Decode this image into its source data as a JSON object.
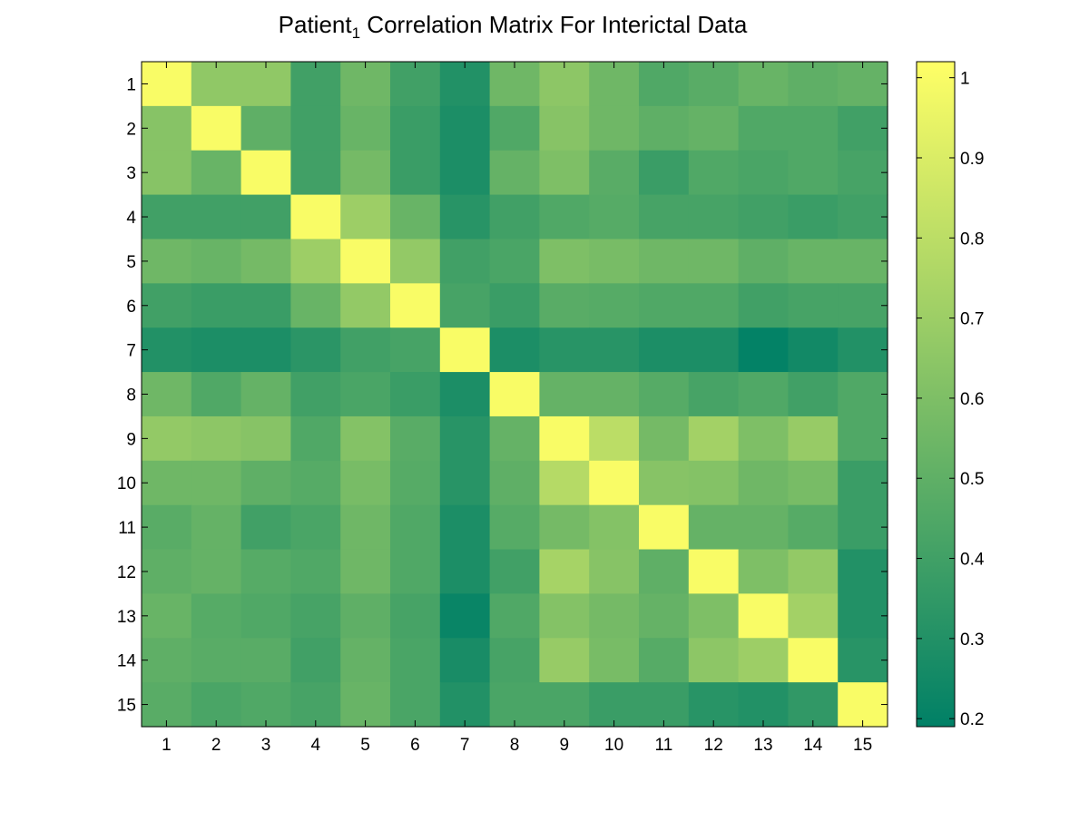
{
  "chart_data": {
    "type": "heatmap",
    "title": {
      "main": "Patient",
      "subscript": "1",
      "rest": " Correlation Matrix For Interictal Data"
    },
    "xlabel": "",
    "ylabel": "",
    "x_categories": [
      "1",
      "2",
      "3",
      "4",
      "5",
      "6",
      "7",
      "8",
      "9",
      "10",
      "11",
      "12",
      "13",
      "14",
      "15"
    ],
    "y_categories": [
      "1",
      "2",
      "3",
      "4",
      "5",
      "6",
      "7",
      "8",
      "9",
      "10",
      "11",
      "12",
      "13",
      "14",
      "15"
    ],
    "colorbar": {
      "range": [
        0.19,
        1.02
      ],
      "ticks": [
        0.2,
        0.3,
        0.4,
        0.5,
        0.6,
        0.7,
        0.8,
        0.9,
        1
      ],
      "tick_labels": [
        "0.2",
        "0.3",
        "0.4",
        "0.5",
        "0.6",
        "0.7",
        "0.8",
        "0.9",
        "1"
      ],
      "colormap": "summer",
      "low_color": "#008066",
      "high_color": "#ffff66"
    },
    "values": [
      [
        1.0,
        0.66,
        0.66,
        0.4,
        0.55,
        0.4,
        0.3,
        0.55,
        0.65,
        0.55,
        0.45,
        0.48,
        0.53,
        0.5,
        0.52
      ],
      [
        0.63,
        1.0,
        0.5,
        0.4,
        0.53,
        0.38,
        0.28,
        0.45,
        0.63,
        0.55,
        0.5,
        0.52,
        0.45,
        0.45,
        0.4
      ],
      [
        0.63,
        0.53,
        1.0,
        0.4,
        0.57,
        0.38,
        0.28,
        0.52,
        0.6,
        0.48,
        0.38,
        0.45,
        0.43,
        0.45,
        0.42
      ],
      [
        0.4,
        0.4,
        0.4,
        1.0,
        0.7,
        0.53,
        0.32,
        0.4,
        0.45,
        0.47,
        0.42,
        0.42,
        0.4,
        0.38,
        0.4
      ],
      [
        0.55,
        0.53,
        0.57,
        0.7,
        1.0,
        0.67,
        0.4,
        0.43,
        0.6,
        0.58,
        0.55,
        0.55,
        0.5,
        0.53,
        0.53
      ],
      [
        0.4,
        0.38,
        0.38,
        0.53,
        0.67,
        1.0,
        0.42,
        0.38,
        0.48,
        0.47,
        0.45,
        0.45,
        0.4,
        0.42,
        0.42
      ],
      [
        0.3,
        0.28,
        0.28,
        0.33,
        0.4,
        0.42,
        1.0,
        0.28,
        0.32,
        0.32,
        0.28,
        0.28,
        0.2,
        0.25,
        0.3
      ],
      [
        0.55,
        0.45,
        0.52,
        0.4,
        0.43,
        0.38,
        0.28,
        1.0,
        0.52,
        0.52,
        0.47,
        0.42,
        0.45,
        0.4,
        0.45
      ],
      [
        0.67,
        0.65,
        0.63,
        0.45,
        0.62,
        0.48,
        0.32,
        0.52,
        1.0,
        0.8,
        0.57,
        0.72,
        0.6,
        0.68,
        0.45
      ],
      [
        0.55,
        0.55,
        0.5,
        0.47,
        0.58,
        0.47,
        0.32,
        0.5,
        0.78,
        1.0,
        0.63,
        0.62,
        0.55,
        0.58,
        0.38
      ],
      [
        0.48,
        0.52,
        0.4,
        0.43,
        0.55,
        0.45,
        0.28,
        0.47,
        0.57,
        0.62,
        1.0,
        0.52,
        0.52,
        0.47,
        0.38
      ],
      [
        0.5,
        0.52,
        0.47,
        0.45,
        0.55,
        0.45,
        0.28,
        0.4,
        0.73,
        0.63,
        0.5,
        1.0,
        0.6,
        0.67,
        0.3
      ],
      [
        0.53,
        0.47,
        0.45,
        0.42,
        0.5,
        0.42,
        0.22,
        0.45,
        0.62,
        0.57,
        0.52,
        0.6,
        1.0,
        0.72,
        0.3
      ],
      [
        0.5,
        0.48,
        0.48,
        0.4,
        0.52,
        0.43,
        0.27,
        0.42,
        0.68,
        0.58,
        0.47,
        0.65,
        0.7,
        1.0,
        0.32
      ],
      [
        0.48,
        0.43,
        0.45,
        0.42,
        0.53,
        0.43,
        0.3,
        0.43,
        0.43,
        0.38,
        0.38,
        0.32,
        0.3,
        0.35,
        1.0
      ]
    ]
  }
}
